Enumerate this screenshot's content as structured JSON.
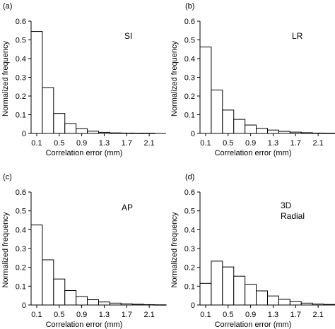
{
  "chart_data": [
    {
      "panel": "(a)",
      "type": "bar",
      "annotation": [
        "SI"
      ],
      "xlabel": "Correlation error (mm)",
      "ylabel": "Normalized frequency",
      "x_ticks": [
        "0.1",
        "0.5",
        "0.9",
        "1.3",
        "1.7",
        "2.1"
      ],
      "y_ticks": [
        "0",
        "0.1",
        "0.2",
        "0.3",
        "0.4",
        "0.5",
        "0.6"
      ],
      "ylim": [
        0,
        0.6
      ],
      "bin_width": 0.2,
      "x": [
        0.1,
        0.3,
        0.5,
        0.7,
        0.9,
        1.1,
        1.3,
        1.5,
        1.7,
        1.9,
        2.1,
        2.3
      ],
      "values": [
        0.545,
        0.245,
        0.107,
        0.053,
        0.025,
        0.012,
        0.006,
        0.003,
        0.002,
        0.001,
        0.001,
        0.0
      ]
    },
    {
      "panel": "(b)",
      "type": "bar",
      "annotation": [
        "LR"
      ],
      "xlabel": "Correlation error (mm)",
      "ylabel": "Normalized frequency",
      "x_ticks": [
        "0.1",
        "0.5",
        "0.9",
        "1.3",
        "1.7",
        "2.1"
      ],
      "y_ticks": [
        "0",
        "0.1",
        "0.2",
        "0.3",
        "0.4",
        "0.5",
        "0.6"
      ],
      "ylim": [
        0,
        0.6
      ],
      "bin_width": 0.2,
      "x": [
        0.1,
        0.3,
        0.5,
        0.7,
        0.9,
        1.1,
        1.3,
        1.5,
        1.7,
        1.9,
        2.1,
        2.3
      ],
      "values": [
        0.462,
        0.232,
        0.125,
        0.075,
        0.045,
        0.027,
        0.018,
        0.011,
        0.007,
        0.004,
        0.002,
        0.001
      ]
    },
    {
      "panel": "(c)",
      "type": "bar",
      "annotation": [
        "AP"
      ],
      "xlabel": "Correlation error (mm)",
      "ylabel": "Normalized frequency",
      "x_ticks": [
        "0.1",
        "0.5",
        "0.9",
        "1.3",
        "1.7",
        "2.1"
      ],
      "y_ticks": [
        "0",
        "0.1",
        "0.2",
        "0.3",
        "0.4",
        "0.5",
        "0.6"
      ],
      "ylim": [
        0,
        0.6
      ],
      "bin_width": 0.2,
      "x": [
        0.1,
        0.3,
        0.5,
        0.7,
        0.9,
        1.1,
        1.3,
        1.5,
        1.7,
        1.9,
        2.1,
        2.3
      ],
      "values": [
        0.425,
        0.24,
        0.138,
        0.077,
        0.045,
        0.028,
        0.016,
        0.01,
        0.006,
        0.004,
        0.002,
        0.001
      ]
    },
    {
      "panel": "(d)",
      "type": "bar",
      "annotation": [
        "3D",
        "Radial"
      ],
      "xlabel": "Correlation error (mm)",
      "ylabel": "Normalized frequency",
      "x_ticks": [
        "0.1",
        "0.5",
        "0.9",
        "1.3",
        "1.7",
        "2.1"
      ],
      "y_ticks": [
        "0",
        "0.1",
        "0.2",
        "0.3",
        "0.4",
        "0.5",
        "0.6"
      ],
      "ylim": [
        0,
        0.6
      ],
      "bin_width": 0.2,
      "x": [
        0.1,
        0.3,
        0.5,
        0.7,
        0.9,
        1.1,
        1.3,
        1.5,
        1.7,
        1.9,
        2.1,
        2.3
      ],
      "values": [
        0.115,
        0.233,
        0.202,
        0.153,
        0.11,
        0.075,
        0.048,
        0.03,
        0.018,
        0.01,
        0.005,
        0.003
      ]
    }
  ]
}
